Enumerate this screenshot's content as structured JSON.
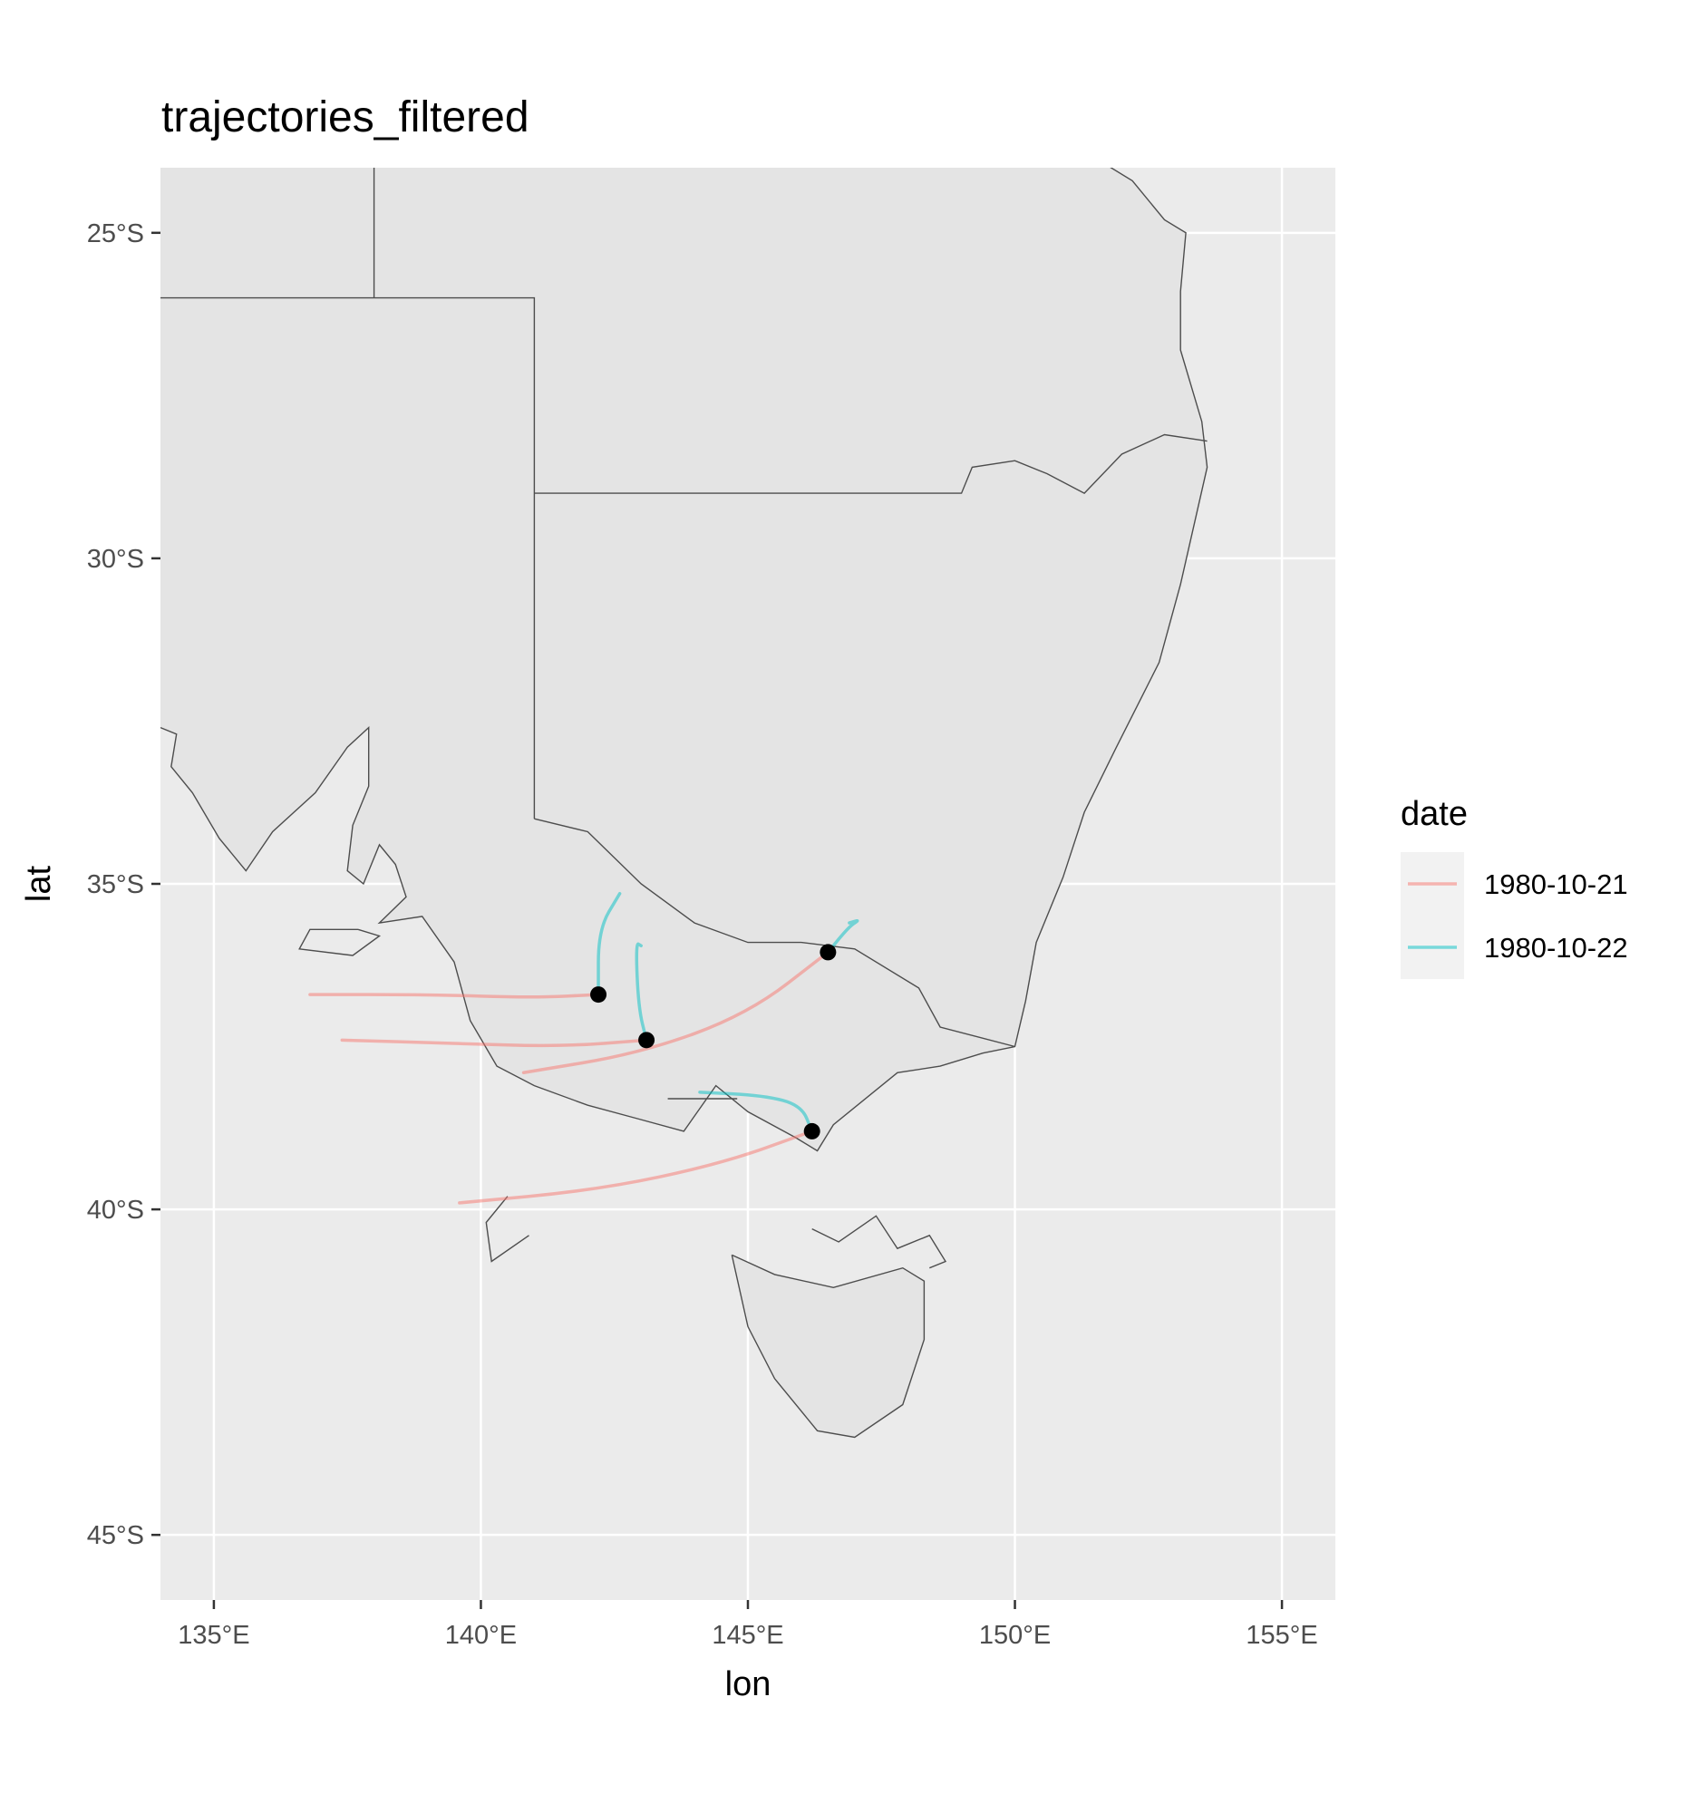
{
  "chart_data": {
    "type": "map",
    "title": "trajectories_filtered",
    "xlabel": "lon",
    "ylabel": "lat",
    "xlim": [
      134,
      156
    ],
    "ylim": [
      -46,
      -24
    ],
    "x_ticks": [
      {
        "value": 135,
        "label": "135°E"
      },
      {
        "value": 140,
        "label": "140°E"
      },
      {
        "value": 145,
        "label": "145°E"
      },
      {
        "value": 150,
        "label": "150°E"
      },
      {
        "value": 155,
        "label": "155°E"
      }
    ],
    "y_ticks": [
      {
        "value": -25,
        "label": "25°S"
      },
      {
        "value": -30,
        "label": "30°S"
      },
      {
        "value": -35,
        "label": "35°S"
      },
      {
        "value": -40,
        "label": "40°S"
      },
      {
        "value": -45,
        "label": "45°S"
      }
    ],
    "grid": true,
    "legend": {
      "title": "date",
      "position": "right",
      "entries": [
        {
          "label": "1980-10-21",
          "color": "#F8766D"
        },
        {
          "label": "1980-10-22",
          "color": "#00BFC4"
        }
      ]
    },
    "colors": {
      "panel_background": "#EBEBEB",
      "land": "#E4E4E4",
      "border": "#4D4D4D",
      "point": "#000000"
    },
    "coastline_and_borders": [
      [
        [
          134,
          -32.6
        ],
        [
          134.3,
          -32.7
        ],
        [
          134.2,
          -33.2
        ],
        [
          134.6,
          -33.6
        ],
        [
          135.1,
          -34.3
        ],
        [
          135.6,
          -34.8
        ],
        [
          136.1,
          -34.2
        ],
        [
          136.9,
          -33.6
        ],
        [
          137.5,
          -32.9
        ],
        [
          137.9,
          -32.6
        ],
        [
          137.9,
          -33.5
        ],
        [
          137.6,
          -34.1
        ],
        [
          137.5,
          -34.8
        ],
        [
          137.8,
          -35.0
        ],
        [
          138.1,
          -34.4
        ],
        [
          138.4,
          -34.7
        ],
        [
          138.6,
          -35.2
        ],
        [
          138.1,
          -35.6
        ],
        [
          138.9,
          -35.5
        ],
        [
          139.5,
          -36.2
        ],
        [
          139.8,
          -37.1
        ],
        [
          140.3,
          -37.8
        ],
        [
          141.0,
          -38.1
        ],
        [
          142.0,
          -38.4
        ],
        [
          142.9,
          -38.6
        ],
        [
          143.8,
          -38.8
        ],
        [
          144.4,
          -38.1
        ],
        [
          145.0,
          -38.5
        ],
        [
          145.9,
          -38.9
        ],
        [
          146.3,
          -39.1
        ],
        [
          146.6,
          -38.7
        ],
        [
          147.8,
          -37.9
        ],
        [
          148.6,
          -37.8
        ],
        [
          149.4,
          -37.6
        ],
        [
          150.0,
          -37.5
        ],
        [
          150.2,
          -36.8
        ],
        [
          150.4,
          -35.9
        ],
        [
          150.9,
          -34.9
        ],
        [
          151.3,
          -33.9
        ],
        [
          151.9,
          -32.9
        ],
        [
          152.7,
          -31.6
        ],
        [
          153.1,
          -30.4
        ],
        [
          153.6,
          -28.6
        ],
        [
          153.5,
          -27.9
        ],
        [
          153.1,
          -26.8
        ],
        [
          153.1,
          -25.9
        ],
        [
          153.2,
          -25.0
        ],
        [
          152.8,
          -24.8
        ],
        [
          152.2,
          -24.2
        ],
        [
          151.6,
          -23.9
        ]
      ],
      [
        [
          138,
          -24
        ],
        [
          138,
          -26
        ]
      ],
      [
        [
          134,
          -26
        ],
        [
          141,
          -26
        ],
        [
          141,
          -34
        ]
      ],
      [
        [
          141,
          -29
        ],
        [
          149,
          -29
        ],
        [
          149.2,
          -28.6
        ],
        [
          150.0,
          -28.5
        ],
        [
          150.6,
          -28.7
        ],
        [
          151.3,
          -29.0
        ],
        [
          152.0,
          -28.4
        ],
        [
          152.8,
          -28.1
        ],
        [
          153.6,
          -28.2
        ]
      ],
      [
        [
          141,
          -34
        ],
        [
          142.0,
          -34.2
        ],
        [
          143.0,
          -35.0
        ],
        [
          144.0,
          -35.6
        ],
        [
          145.0,
          -35.9
        ],
        [
          146.0,
          -35.9
        ],
        [
          147.0,
          -36.0
        ],
        [
          148.2,
          -36.6
        ],
        [
          148.6,
          -37.2
        ],
        [
          150.0,
          -37.5
        ]
      ],
      [
        [
          140.5,
          -39.8
        ],
        [
          140.1,
          -40.2
        ],
        [
          140.2,
          -40.8
        ],
        [
          140.9,
          -40.4
        ]
      ],
      [
        [
          146.2,
          -40.3
        ],
        [
          146.7,
          -40.5
        ],
        [
          147.4,
          -40.1
        ],
        [
          147.8,
          -40.6
        ],
        [
          148.4,
          -40.4
        ],
        [
          148.7,
          -40.8
        ],
        [
          148.4,
          -40.9
        ]
      ],
      [
        [
          144.7,
          -40.7
        ],
        [
          145.5,
          -41.0
        ],
        [
          146.6,
          -41.2
        ],
        [
          147.9,
          -40.9
        ],
        [
          148.3,
          -41.1
        ],
        [
          148.3,
          -42.0
        ],
        [
          147.9,
          -43.0
        ],
        [
          147.0,
          -43.5
        ],
        [
          146.3,
          -43.4
        ],
        [
          145.5,
          -42.6
        ],
        [
          145.0,
          -41.8
        ],
        [
          144.7,
          -40.7
        ]
      ],
      [
        [
          137.7,
          -35.7
        ],
        [
          138.1,
          -35.8
        ],
        [
          137.6,
          -36.1
        ],
        [
          136.6,
          -36.0
        ],
        [
          136.8,
          -35.7
        ],
        [
          137.7,
          -35.7
        ]
      ],
      [
        [
          143.5,
          -38.3
        ],
        [
          144.8,
          -38.3
        ]
      ]
    ],
    "trajectories": [
      {
        "series": "1980-10-21",
        "points": [
          [
            136.8,
            -36.7
          ],
          [
            139,
            -36.7
          ],
          [
            141,
            -36.75
          ],
          [
            142.2,
            -36.7
          ]
        ]
      },
      {
        "series": "1980-10-21",
        "points": [
          [
            137.4,
            -37.4
          ],
          [
            139.5,
            -37.45
          ],
          [
            141.5,
            -37.5
          ],
          [
            143.1,
            -37.4
          ]
        ]
      },
      {
        "series": "1980-10-21",
        "points": [
          [
            140.8,
            -37.9
          ],
          [
            143.0,
            -37.6
          ],
          [
            145.0,
            -37.0
          ],
          [
            146.5,
            -36.05
          ]
        ]
      },
      {
        "series": "1980-10-21",
        "points": [
          [
            139.6,
            -39.9
          ],
          [
            142.2,
            -39.7
          ],
          [
            144.5,
            -39.3
          ],
          [
            146.2,
            -38.8
          ]
        ]
      },
      {
        "series": "1980-10-22",
        "points": [
          [
            142.2,
            -36.7
          ],
          [
            142.2,
            -35.7
          ],
          [
            142.6,
            -35.15
          ]
        ]
      },
      {
        "series": "1980-10-22",
        "points": [
          [
            143.1,
            -37.4
          ],
          [
            142.95,
            -36.9
          ],
          [
            142.9,
            -35.9
          ],
          [
            143.0,
            -35.95
          ]
        ]
      },
      {
        "series": "1980-10-22",
        "points": [
          [
            146.5,
            -36.05
          ],
          [
            146.9,
            -35.65
          ],
          [
            147.1,
            -35.55
          ],
          [
            146.9,
            -35.6
          ]
        ]
      },
      {
        "series": "1980-10-22",
        "points": [
          [
            146.2,
            -38.8
          ],
          [
            146.0,
            -38.4
          ],
          [
            145.3,
            -38.25
          ],
          [
            144.1,
            -38.2
          ]
        ]
      }
    ],
    "points": [
      {
        "lon": 142.2,
        "lat": -36.7
      },
      {
        "lon": 143.1,
        "lat": -37.4
      },
      {
        "lon": 146.5,
        "lat": -36.05
      },
      {
        "lon": 146.2,
        "lat": -38.8
      }
    ]
  }
}
